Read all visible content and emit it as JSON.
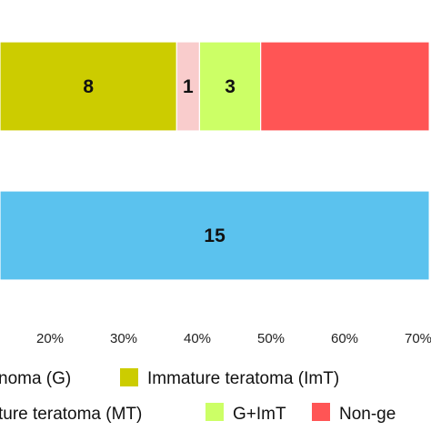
{
  "chart_data": {
    "type": "bar",
    "orientation": "horizontal",
    "stacked": true,
    "x_unit": "percent",
    "xlim": [
      10,
      71.5
    ],
    "x_ticks": [
      20,
      30,
      40,
      50,
      60,
      70
    ],
    "x_tick_labels": [
      "20%",
      "30%",
      "40%",
      "50%",
      "60%",
      "70%"
    ],
    "grid": false,
    "legend_position": "bottom",
    "bars": [
      {
        "segments": [
          {
            "series": "G",
            "start": 10,
            "end": 10.6,
            "label": ""
          },
          {
            "series": "ImT",
            "start": 10.6,
            "end": 37.2,
            "label": "8"
          },
          {
            "series": "MT",
            "start": 37.2,
            "end": 40.3,
            "label": "1"
          },
          {
            "series": "G+ImT",
            "start": 40.3,
            "end": 48.6,
            "label": "3"
          },
          {
            "series": "Non-ge",
            "start": 48.6,
            "end": 71.5,
            "label": ""
          }
        ]
      },
      {
        "segments": [
          {
            "series": "G",
            "start": 10,
            "end": 71.5,
            "label": "15"
          }
        ]
      }
    ],
    "legend": [
      {
        "key": "G",
        "label": "noma (G)",
        "color": "#5BC2EE"
      },
      {
        "key": "ImT",
        "label": "Immature teratoma (ImT)",
        "color": "#CCCC00"
      },
      {
        "key": "MT",
        "label": "ture teratoma (MT)",
        "color": "#F9CCCC"
      },
      {
        "key": "G+ImT",
        "label": "G+ImT",
        "color": "#CCFF66"
      },
      {
        "key": "Non-ge",
        "label": "Non-ge",
        "color": "#FF5555"
      }
    ]
  }
}
